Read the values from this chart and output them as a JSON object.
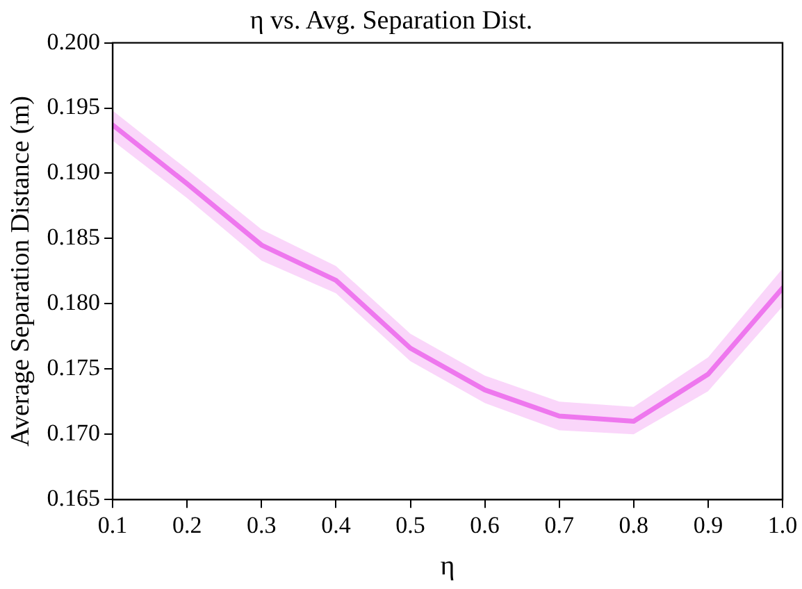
{
  "chart_data": {
    "type": "line",
    "title": "η vs. Avg. Separation Dist.",
    "xlabel": "η",
    "ylabel": "Average Separation Distance (m)",
    "x": [
      0.1,
      0.2,
      0.3,
      0.4,
      0.5,
      0.6,
      0.7,
      0.8,
      0.9,
      1.0
    ],
    "series": [
      {
        "color": "#ee77ee",
        "values": [
          0.1937,
          0.1892,
          0.1845,
          0.1818,
          0.1766,
          0.1734,
          0.1714,
          0.171,
          0.1746,
          0.1812
        ],
        "lower": [
          0.1925,
          0.1881,
          0.1833,
          0.1808,
          0.1756,
          0.1724,
          0.1703,
          0.17,
          0.1733,
          0.1798
        ],
        "upper": [
          0.1948,
          0.1903,
          0.1857,
          0.1829,
          0.1777,
          0.1745,
          0.1725,
          0.1721,
          0.1759,
          0.1827
        ]
      }
    ],
    "xlim": [
      0.1,
      1.0
    ],
    "xticks": [
      {
        "value": 0.1,
        "label": "0.1"
      },
      {
        "value": 0.2,
        "label": "0.2"
      },
      {
        "value": 0.3,
        "label": "0.3"
      },
      {
        "value": 0.4,
        "label": "0.4"
      },
      {
        "value": 0.5,
        "label": "0.5"
      },
      {
        "value": 0.6,
        "label": "0.6"
      },
      {
        "value": 0.7,
        "label": "0.7"
      },
      {
        "value": 0.8,
        "label": "0.8"
      },
      {
        "value": 0.9,
        "label": "0.9"
      },
      {
        "value": 1.0,
        "label": "1.0"
      }
    ],
    "ylim": [
      0.165,
      0.2
    ],
    "yticks": [
      {
        "value": 0.165,
        "label": "0.165"
      },
      {
        "value": 0.17,
        "label": "0.170"
      },
      {
        "value": 0.175,
        "label": "0.175"
      },
      {
        "value": 0.18,
        "label": "0.180"
      },
      {
        "value": 0.185,
        "label": "0.185"
      },
      {
        "value": 0.19,
        "label": "0.190"
      },
      {
        "value": 0.195,
        "label": "0.195"
      },
      {
        "value": 0.2,
        "label": "0.200"
      }
    ],
    "grid": false,
    "legend": false,
    "marker": "none",
    "line_style": "solid"
  }
}
